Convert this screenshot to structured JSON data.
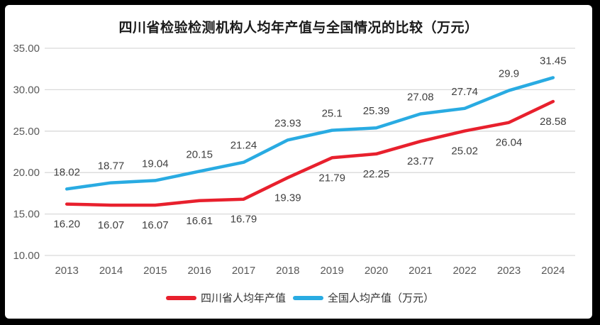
{
  "title": "四川省检验检测机构人均年产值与全国情况的比较（万元）",
  "chart_data": {
    "type": "line",
    "title": "四川省检验检测机构人均年产值与全国情况的比较（万元）",
    "categories": [
      "2013",
      "2014",
      "2015",
      "2016",
      "2017",
      "2018",
      "2019",
      "2020",
      "2021",
      "2022",
      "2023",
      "2024"
    ],
    "series": [
      {
        "id": "sichuan",
        "name": "四川省人均年产值",
        "color": "#e8202d",
        "values": [
          16.2,
          16.07,
          16.07,
          16.61,
          16.79,
          19.39,
          21.79,
          22.25,
          23.77,
          25.02,
          26.04,
          28.58
        ],
        "labels": [
          "16.20",
          "16.07",
          "16.07",
          "16.61",
          "16.79",
          "19.39",
          "21.79",
          "22.25",
          "23.77",
          "25.02",
          "26.04",
          "28.58"
        ],
        "label_position": "below"
      },
      {
        "id": "national",
        "name": "全国人均产值（万元）",
        "color": "#29abe2",
        "values": [
          18.02,
          18.77,
          19.04,
          20.15,
          21.24,
          23.93,
          25.1,
          25.39,
          27.08,
          27.74,
          29.9,
          31.45
        ],
        "labels": [
          "18.02",
          "18.77",
          "19.04",
          "20.15",
          "21.24",
          "23.93",
          "25.1",
          "25.39",
          "27.08",
          "27.74",
          "29.9",
          "31.45"
        ],
        "label_position": "above"
      }
    ],
    "xlabel": "",
    "ylabel": "",
    "ylim": [
      10,
      35
    ],
    "ytick_step": 5,
    "ytick_labels": [
      "10.00",
      "15.00",
      "20.00",
      "25.00",
      "30.00",
      "35.00"
    ],
    "grid": "horizontal",
    "legend_position": "bottom",
    "gridline_color": "#d9d9d9",
    "axis_label_color": "#595959",
    "data_label_color": "#404040"
  },
  "legend": {
    "items": [
      {
        "label": "四川省人均年产值"
      },
      {
        "label": "全国人均产值（万元）"
      }
    ]
  }
}
